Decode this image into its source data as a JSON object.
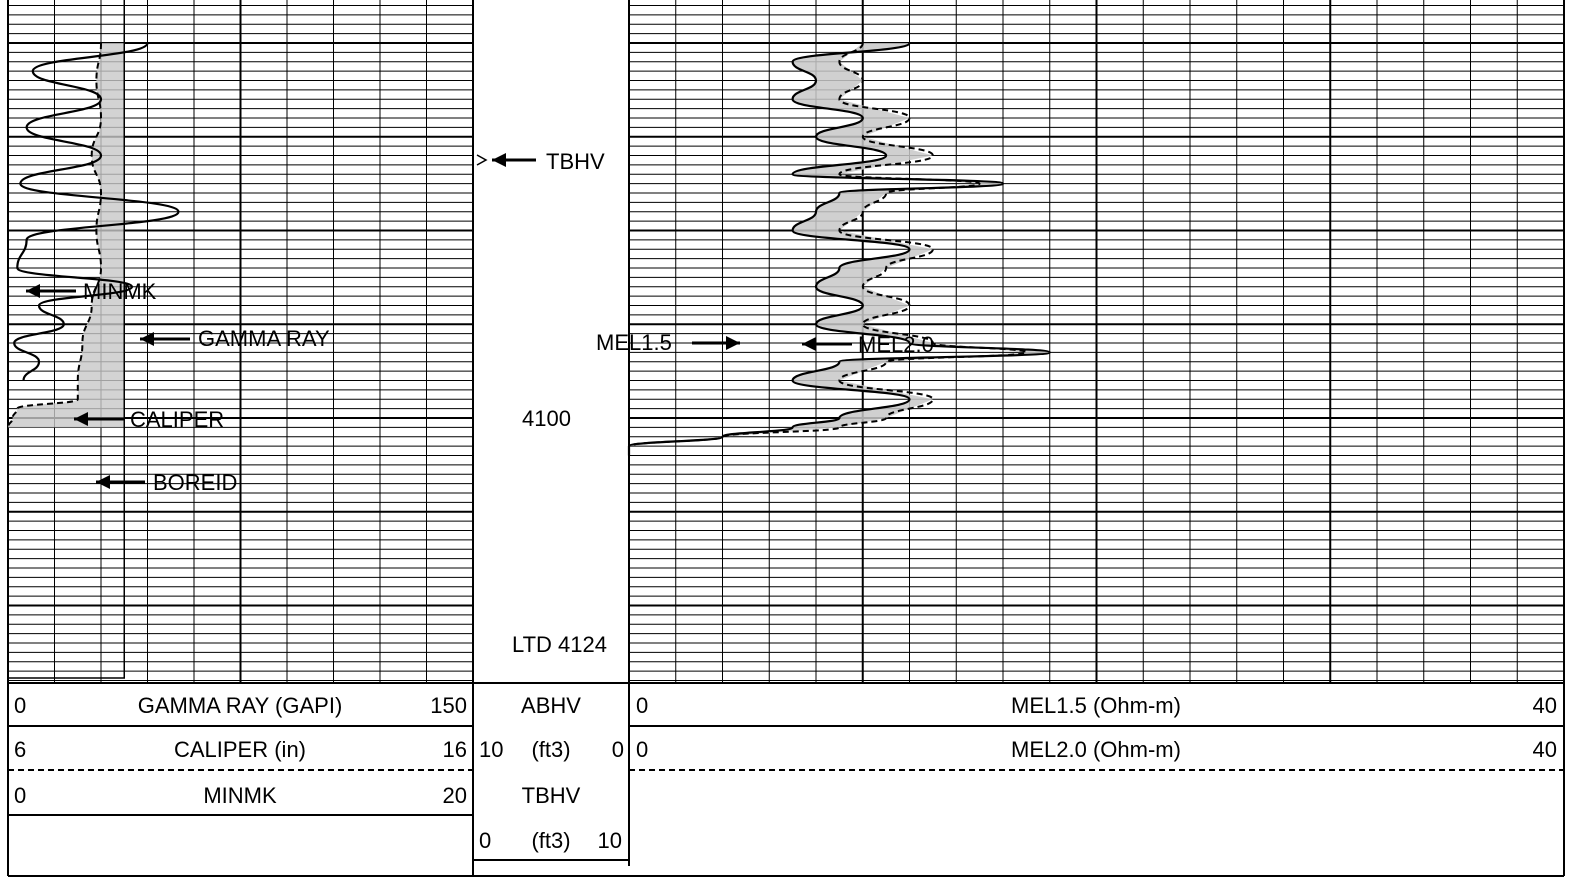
{
  "chart_data": {
    "type": "line",
    "title": "",
    "depth_markers": {
      "middle": "4100",
      "total_depth": "LTD 4124"
    },
    "track1": {
      "name": "left-track",
      "curves": [
        {
          "name": "GAMMA RAY",
          "unit": "GAPI",
          "scale": [
            0,
            150
          ],
          "line": "solid",
          "depth": [
            4060,
            4063,
            4066,
            4069,
            4072,
            4075,
            4078,
            4081,
            4084,
            4086,
            4088,
            4090,
            4092,
            4094,
            4096
          ],
          "values": [
            45,
            8,
            30,
            6,
            30,
            4,
            55,
            6,
            3,
            40,
            10,
            18,
            2,
            10,
            5
          ]
        },
        {
          "name": "CALIPER",
          "unit": "in",
          "scale": [
            6,
            16
          ],
          "line": "dashed",
          "depth": [
            4060,
            4064,
            4068,
            4072,
            4076,
            4080,
            4084,
            4088,
            4092,
            4096,
            4098,
            4099,
            4100,
            4101
          ],
          "values": [
            8.0,
            7.9,
            8.0,
            7.8,
            8.0,
            7.9,
            8.0,
            7.8,
            7.6,
            7.5,
            7.5,
            6.2,
            6.1,
            6.0
          ]
        },
        {
          "name": "MINMK",
          "unit": "",
          "scale": [
            0,
            20
          ],
          "line": "solid",
          "depth": [],
          "values": []
        }
      ],
      "bore_id_in": 8.5
    },
    "track2": {
      "name": "depth-track",
      "curves": [
        {
          "name": "ABHV",
          "unit": "ft3",
          "scale": [
            10,
            0
          ]
        },
        {
          "name": "TBHV",
          "unit": "ft3",
          "scale": [
            0,
            10
          ]
        }
      ]
    },
    "track3": {
      "name": "right-track",
      "curves": [
        {
          "name": "MEL1.5",
          "unit": "Ohm-m",
          "scale": [
            0,
            40
          ],
          "line": "solid",
          "depth": [
            4060,
            4062,
            4064,
            4066,
            4068,
            4070,
            4072,
            4074,
            4075,
            4076,
            4078,
            4080,
            4082,
            4084,
            4086,
            4088,
            4090,
            4092,
            4093,
            4094,
            4096,
            4098,
            4100,
            4101,
            4102,
            4103,
            4104
          ],
          "values": [
            12,
            7,
            8,
            7,
            10,
            8,
            11,
            7,
            16,
            9,
            8,
            7,
            12,
            9,
            8,
            10,
            8,
            12,
            18,
            9,
            7,
            12,
            9,
            7,
            4,
            0,
            0
          ]
        },
        {
          "name": "MEL2.0",
          "unit": "Ohm-m",
          "scale": [
            0,
            40
          ],
          "line": "dashed",
          "depth": [
            4060,
            4062,
            4064,
            4066,
            4068,
            4070,
            4072,
            4074,
            4075,
            4076,
            4078,
            4080,
            4082,
            4084,
            4086,
            4088,
            4090,
            4092,
            4093,
            4094,
            4096,
            4098,
            4100,
            4101,
            4102,
            4103,
            4104
          ],
          "values": [
            10,
            9,
            10,
            9,
            12,
            10,
            13,
            9,
            15,
            11,
            10,
            9,
            13,
            11,
            10,
            12,
            10,
            13,
            17,
            11,
            9,
            13,
            11,
            9,
            4,
            0,
            0
          ]
        }
      ]
    },
    "labels": {
      "tbhv": "TBHV",
      "minmk": "MINMK",
      "gamma_ray": "GAMMA RAY",
      "caliper": "CALIPER",
      "boreid": "BOREID",
      "mel15": "MEL1.5",
      "mel20": "MEL2.0"
    },
    "header": {
      "row1": {
        "left_min": "0",
        "left_title": "GAMMA RAY (GAPI)",
        "left_max": "150",
        "mid_title": "ABHV",
        "right_min": "0",
        "right_title": "MEL1.5 (Ohm-m)",
        "right_max": "40"
      },
      "row2": {
        "left_min": "6",
        "left_title": "CALIPER (in)",
        "left_max": "16",
        "mid_min": "10",
        "mid_title": "(ft3)",
        "mid_max": "0",
        "right_min": "0",
        "right_title": "MEL2.0 (Ohm-m)",
        "right_max": "40"
      },
      "row3": {
        "left_min": "0",
        "left_title": "MINMK",
        "left_max": "20",
        "mid_title": "TBHV"
      },
      "row4": {
        "mid_min": "0",
        "mid_title": "(ft3)",
        "mid_max": "10"
      }
    },
    "grid": true
  }
}
